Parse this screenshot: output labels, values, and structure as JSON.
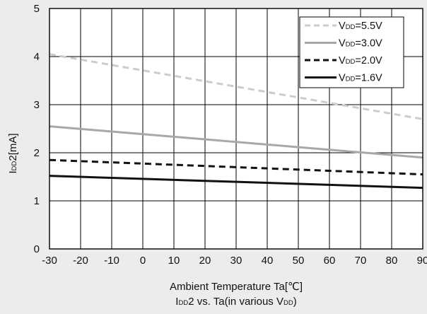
{
  "chart_data": {
    "type": "line",
    "xlabel": "Ambient Temperature Ta[℃]",
    "ylabel_main": "I",
    "ylabel_sub": "DD",
    "ylabel_tail": "2[mA]",
    "caption_main": "I",
    "caption_sub1": "DD",
    "caption_mid": "2 vs. Ta(in various V",
    "caption_sub2": "DD",
    "caption_tail": ")",
    "xlim": [
      -30,
      90
    ],
    "ylim": [
      0,
      5
    ],
    "xticks": [
      -30,
      -20,
      -10,
      0,
      10,
      20,
      30,
      40,
      50,
      60,
      70,
      80,
      90
    ],
    "yticks": [
      0,
      1,
      2,
      3,
      4,
      5
    ],
    "grid": true,
    "legend_position": "top-right",
    "series": [
      {
        "legend_main": "V",
        "legend_sub": "DD",
        "legend_tail": "=5.5V",
        "color": "#cccccc",
        "dash": "dashed",
        "x": [
          -30,
          90
        ],
        "y": [
          4.05,
          2.7
        ]
      },
      {
        "legend_main": "V",
        "legend_sub": "DD",
        "legend_tail": "=3.0V",
        "color": "#a8a8a8",
        "dash": "solid",
        "x": [
          -30,
          90
        ],
        "y": [
          2.55,
          1.9
        ]
      },
      {
        "legend_main": "V",
        "legend_sub": "DD",
        "legend_tail": "=2.0V",
        "color": "#111111",
        "dash": "dashed",
        "x": [
          -30,
          90
        ],
        "y": [
          1.85,
          1.55
        ]
      },
      {
        "legend_main": "V",
        "legend_sub": "DD",
        "legend_tail": "=1.6V",
        "color": "#111111",
        "dash": "solid",
        "x": [
          -30,
          90
        ],
        "y": [
          1.52,
          1.27
        ]
      }
    ]
  }
}
